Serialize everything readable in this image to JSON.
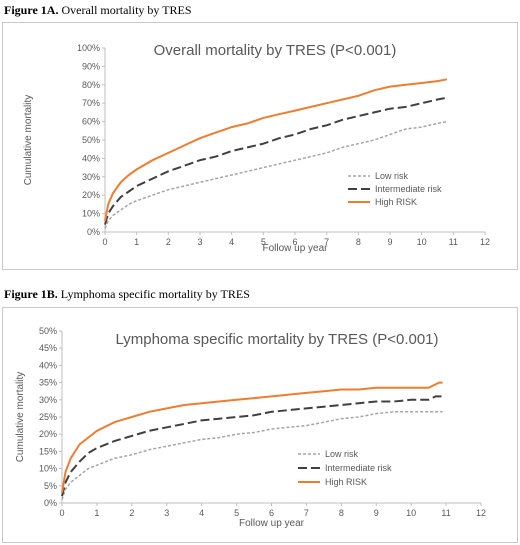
{
  "captions": [
    {
      "bold": "Figure 1A.",
      "text": " Overall mortality by TRES"
    },
    {
      "bold": "Figure 1B.",
      "text": " Lymphoma specific mortality by TRES"
    }
  ],
  "chart_data": [
    {
      "type": "line",
      "title": "Overall mortality by TRES (P<0.001)",
      "xlabel": "Follow up year",
      "ylabel": "Cumulative mortality",
      "xlim": [
        0,
        12
      ],
      "ylim": [
        0,
        100
      ],
      "xticks": [
        "0",
        "1",
        "2",
        "3",
        "4",
        "5",
        "6",
        "7",
        "8",
        "9",
        "10",
        "11",
        "12"
      ],
      "yticks": [
        "0%",
        "10%",
        "20%",
        "30%",
        "40%",
        "50%",
        "60%",
        "70%",
        "80%",
        "90%",
        "100%"
      ],
      "grid": false,
      "legend": "bottom-right",
      "series": [
        {
          "name": "Low risk",
          "color": "#a5a5a5",
          "style": "dotted",
          "x": [
            0,
            0.1,
            0.25,
            0.5,
            0.75,
            1,
            1.5,
            2,
            2.5,
            3,
            3.5,
            4,
            4.5,
            5,
            5.5,
            6,
            6.5,
            7,
            7.5,
            8,
            8.5,
            9,
            9.5,
            10,
            10.5,
            10.8
          ],
          "y": [
            2,
            6,
            9,
            12,
            15,
            17,
            20,
            23,
            25,
            27,
            29,
            31,
            33,
            35,
            37,
            39,
            41,
            43,
            46,
            48,
            50,
            53,
            56,
            57,
            59,
            60
          ]
        },
        {
          "name": "Intermediate risk",
          "color": "#404040",
          "style": "dashed",
          "x": [
            0,
            0.1,
            0.25,
            0.5,
            0.75,
            1,
            1.5,
            2,
            2.5,
            3,
            3.5,
            4,
            4.5,
            5,
            5.5,
            6,
            6.5,
            7,
            7.5,
            8,
            8.5,
            9,
            9.5,
            10,
            10.5,
            10.8
          ],
          "y": [
            4,
            10,
            14,
            19,
            22,
            25,
            29,
            33,
            36,
            39,
            41,
            44,
            46,
            48,
            51,
            53,
            56,
            58,
            61,
            63,
            65,
            67,
            68,
            70,
            72,
            73
          ]
        },
        {
          "name": "High RISK",
          "color": "#ed7d31",
          "style": "solid",
          "x": [
            0,
            0.1,
            0.25,
            0.5,
            0.75,
            1,
            1.5,
            2,
            2.5,
            3,
            3.5,
            4,
            4.5,
            5,
            5.5,
            6,
            6.5,
            7,
            7.5,
            8,
            8.5,
            9,
            9.5,
            10,
            10.5,
            10.8
          ],
          "y": [
            6,
            15,
            21,
            27,
            31,
            34,
            39,
            43,
            47,
            51,
            54,
            57,
            59,
            62,
            64,
            66,
            68,
            70,
            72,
            74,
            77,
            79,
            80,
            81,
            82,
            83
          ]
        }
      ]
    },
    {
      "type": "line",
      "title": "Lymphoma specific mortality by TRES (P<0.001)",
      "xlabel": "Follow up year",
      "ylabel": "Cumulative mortality",
      "xlim": [
        0,
        12
      ],
      "ylim": [
        0,
        50
      ],
      "xticks": [
        "0",
        "1",
        "2",
        "3",
        "4",
        "5",
        "6",
        "7",
        "8",
        "9",
        "10",
        "11",
        "12"
      ],
      "yticks": [
        "0%",
        "5%",
        "10%",
        "15%",
        "20%",
        "25%",
        "30%",
        "35%",
        "40%",
        "45%",
        "50%"
      ],
      "grid": false,
      "legend": "bottom-right",
      "series": [
        {
          "name": "Low risk",
          "color": "#a5a5a5",
          "style": "dotted",
          "x": [
            0,
            0.1,
            0.25,
            0.5,
            0.75,
            1,
            1.5,
            2,
            2.5,
            3,
            3.5,
            4,
            4.5,
            5,
            5.5,
            6,
            6.5,
            7,
            7.5,
            8,
            8.5,
            9,
            9.5,
            10,
            10.5,
            10.9
          ],
          "y": [
            1,
            4,
            6,
            8,
            10,
            11,
            13,
            14,
            15.5,
            16.5,
            17.5,
            18.5,
            19,
            20,
            20.5,
            21.5,
            22,
            22.5,
            23.5,
            24.5,
            25,
            26,
            26.5,
            26.5,
            26.5,
            26.5
          ]
        },
        {
          "name": "Intermediate risk",
          "color": "#404040",
          "style": "dashed",
          "x": [
            0,
            0.1,
            0.25,
            0.5,
            0.75,
            1,
            1.5,
            2,
            2.5,
            3,
            3.5,
            4,
            4.5,
            5,
            5.5,
            6,
            6.5,
            7,
            7.5,
            8,
            8.5,
            9,
            9.5,
            10,
            10.5,
            10.7,
            10.9
          ],
          "y": [
            2,
            6,
            9,
            12,
            14.5,
            16,
            18,
            19.5,
            21,
            22,
            23,
            24,
            24.5,
            25,
            25.5,
            26.5,
            27,
            27.5,
            28,
            28.5,
            29,
            29.5,
            29.5,
            30,
            30,
            31,
            31
          ]
        },
        {
          "name": "High RISK",
          "color": "#ed7d31",
          "style": "solid",
          "x": [
            0,
            0.1,
            0.25,
            0.5,
            0.75,
            1,
            1.5,
            2,
            2.5,
            3,
            3.5,
            4,
            4.5,
            5,
            5.5,
            6,
            6.5,
            7,
            7.5,
            8,
            8.5,
            9,
            9.5,
            10,
            10.5,
            10.8,
            10.9
          ],
          "y": [
            3,
            9,
            13,
            17,
            19,
            21,
            23.5,
            25,
            26.5,
            27.5,
            28.5,
            29,
            29.5,
            30,
            30.5,
            31,
            31.5,
            32,
            32.5,
            33,
            33,
            33.5,
            33.5,
            33.5,
            33.5,
            35,
            35
          ]
        }
      ]
    }
  ]
}
